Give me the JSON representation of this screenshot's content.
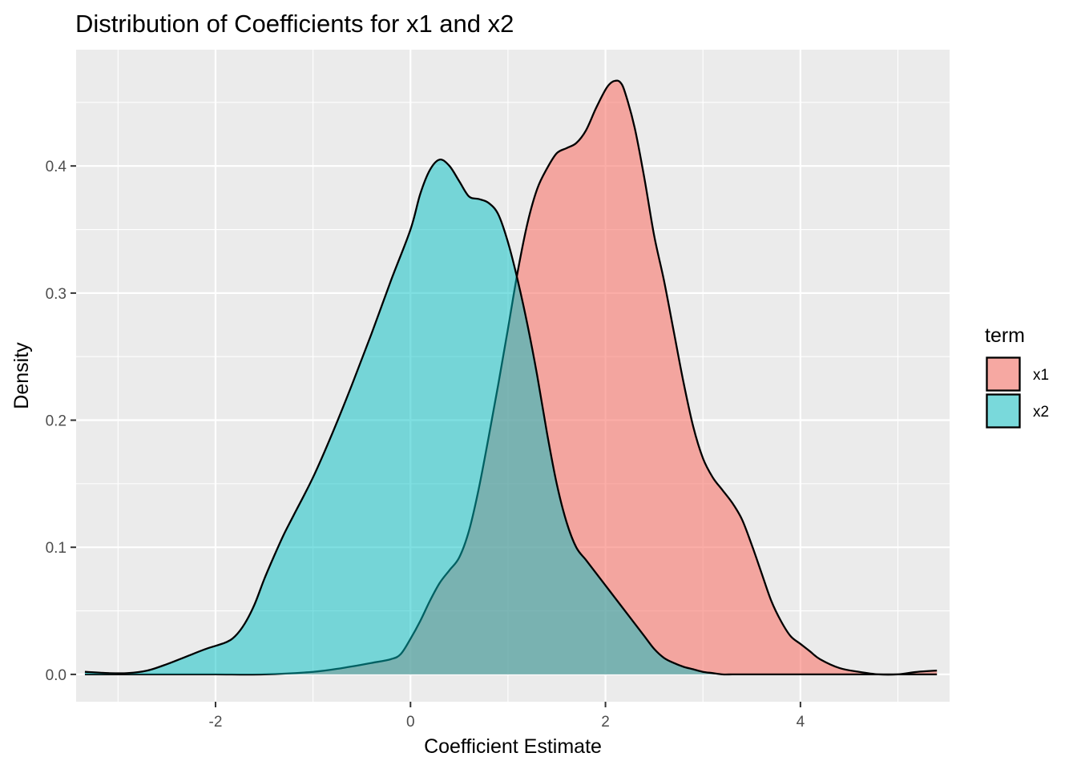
{
  "chart_data": {
    "type": "area",
    "title": "Distribution of Coefficients for x1 and x2",
    "xlabel": "Coefficient Estimate",
    "ylabel": "Density",
    "xlim": [
      -3.43,
      5.53
    ],
    "ylim": [
      -0.0215,
      0.4915
    ],
    "x_ticks": [
      -2,
      0,
      2,
      4
    ],
    "x_tick_labels": [
      "-2",
      "0",
      "2",
      "4"
    ],
    "y_ticks": [
      0.0,
      0.1,
      0.2,
      0.3,
      0.4
    ],
    "y_tick_labels": [
      "0.0",
      "0.1",
      "0.2",
      "0.3",
      "0.4"
    ],
    "grid": true,
    "legend": {
      "title": "term",
      "position": "right"
    },
    "series": [
      {
        "name": "x1",
        "color": "#F8766D",
        "opacity": 0.6,
        "x": [
          -3.34,
          -3.0,
          -2.5,
          -2.0,
          -1.5,
          -1.0,
          -0.7,
          -0.4,
          -0.2,
          -0.1,
          0.0,
          0.1,
          0.2,
          0.3,
          0.4,
          0.5,
          0.6,
          0.7,
          0.8,
          0.9,
          1.0,
          1.1,
          1.2,
          1.3,
          1.4,
          1.5,
          1.6,
          1.7,
          1.8,
          1.9,
          2.0,
          2.05,
          2.1,
          2.15,
          2.2,
          2.3,
          2.4,
          2.5,
          2.6,
          2.7,
          2.8,
          2.9,
          3.0,
          3.1,
          3.2,
          3.3,
          3.4,
          3.5,
          3.6,
          3.7,
          3.8,
          3.9,
          4.0,
          4.1,
          4.2,
          4.4,
          4.6,
          4.8,
          5.0,
          5.2,
          5.4
        ],
        "y": [
          0.0,
          0.0,
          0.0,
          0.0,
          0.0,
          0.002,
          0.005,
          0.009,
          0.012,
          0.016,
          0.028,
          0.042,
          0.058,
          0.072,
          0.082,
          0.092,
          0.113,
          0.146,
          0.186,
          0.228,
          0.272,
          0.317,
          0.355,
          0.382,
          0.398,
          0.41,
          0.414,
          0.418,
          0.428,
          0.445,
          0.46,
          0.465,
          0.467,
          0.466,
          0.458,
          0.43,
          0.39,
          0.345,
          0.31,
          0.27,
          0.23,
          0.195,
          0.17,
          0.155,
          0.145,
          0.135,
          0.122,
          0.102,
          0.08,
          0.058,
          0.042,
          0.03,
          0.024,
          0.018,
          0.012,
          0.005,
          0.002,
          0.0,
          0.0,
          0.002,
          0.003
        ]
      },
      {
        "name": "x2",
        "color": "#00BFC4",
        "opacity": 0.5,
        "x": [
          -3.34,
          -3.1,
          -2.9,
          -2.7,
          -2.5,
          -2.3,
          -2.1,
          -1.9,
          -1.8,
          -1.7,
          -1.6,
          -1.5,
          -1.4,
          -1.3,
          -1.2,
          -1.0,
          -0.8,
          -0.6,
          -0.4,
          -0.2,
          0.0,
          0.1,
          0.2,
          0.3,
          0.4,
          0.5,
          0.6,
          0.7,
          0.8,
          0.9,
          1.0,
          1.1,
          1.2,
          1.3,
          1.4,
          1.5,
          1.6,
          1.7,
          1.8,
          1.9,
          2.0,
          2.1,
          2.2,
          2.3,
          2.4,
          2.5,
          2.6,
          2.7,
          2.8,
          2.9,
          3.0,
          3.1,
          3.2,
          3.3,
          3.4,
          3.6,
          3.8,
          4.0,
          4.2,
          4.4,
          4.6,
          4.8,
          5.0,
          5.2,
          5.4
        ],
        "y": [
          0.002,
          0.001,
          0.001,
          0.003,
          0.008,
          0.014,
          0.02,
          0.025,
          0.03,
          0.04,
          0.055,
          0.075,
          0.093,
          0.11,
          0.125,
          0.155,
          0.19,
          0.228,
          0.268,
          0.31,
          0.35,
          0.378,
          0.397,
          0.405,
          0.4,
          0.388,
          0.376,
          0.374,
          0.371,
          0.362,
          0.34,
          0.31,
          0.275,
          0.235,
          0.19,
          0.15,
          0.12,
          0.1,
          0.09,
          0.08,
          0.07,
          0.06,
          0.05,
          0.04,
          0.03,
          0.02,
          0.013,
          0.009,
          0.006,
          0.004,
          0.002,
          0.001,
          0.0,
          0.0,
          0.0,
          0.0,
          0.0,
          0.0,
          0.0,
          0.0,
          0.0,
          0.0,
          0.0,
          0.0,
          0.0
        ]
      }
    ]
  }
}
